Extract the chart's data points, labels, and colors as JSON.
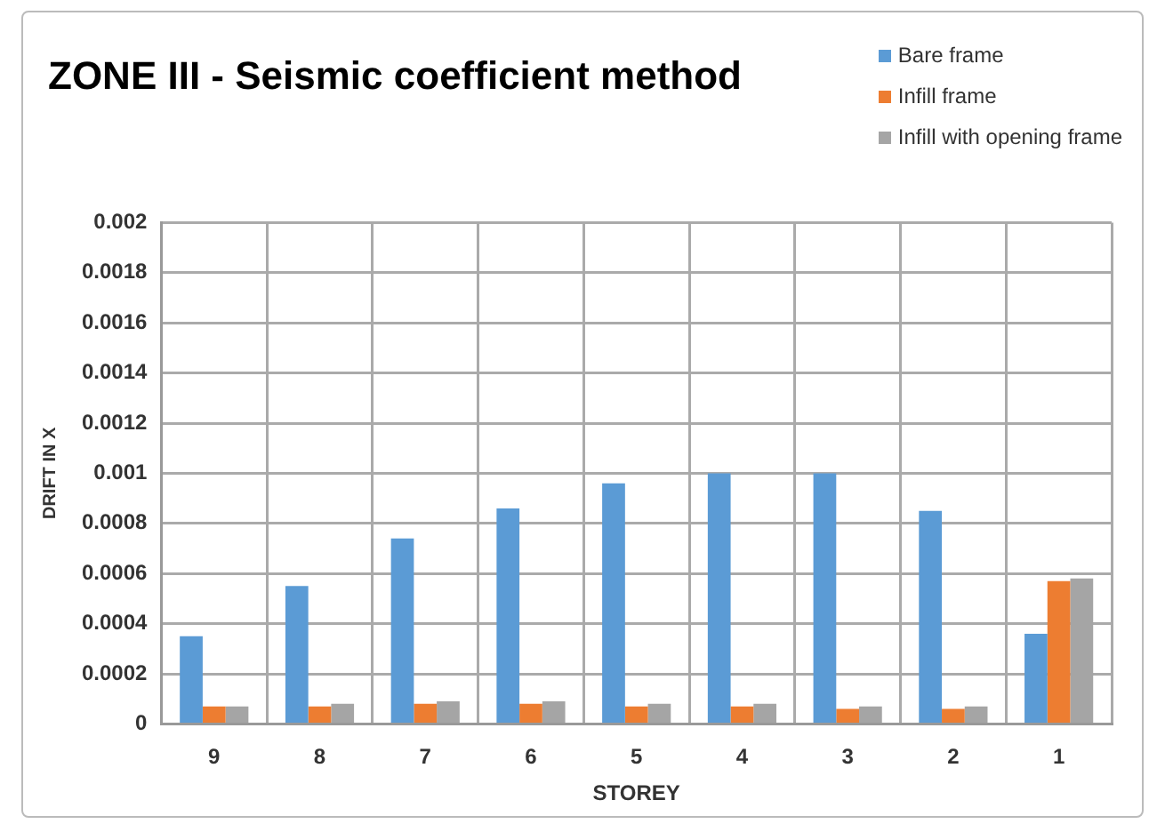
{
  "chart_data": {
    "type": "bar",
    "title": "ZONE III - Seismic coefficient method",
    "xlabel": "STOREY",
    "ylabel": "DRIFT IN X",
    "categories": [
      "9",
      "8",
      "7",
      "6",
      "5",
      "4",
      "3",
      "2",
      "1"
    ],
    "series": [
      {
        "name": "Bare frame",
        "color": "#5b9bd5",
        "values": [
          0.00035,
          0.00055,
          0.00074,
          0.00086,
          0.00096,
          0.001,
          0.001,
          0.00085,
          0.00036
        ]
      },
      {
        "name": "Infill frame",
        "color": "#ed7d31",
        "values": [
          7e-05,
          7e-05,
          8e-05,
          8e-05,
          7e-05,
          7e-05,
          6e-05,
          6e-05,
          0.00057
        ]
      },
      {
        "name": "Infill with opening frame",
        "color": "#a5a5a5",
        "values": [
          7e-05,
          8e-05,
          9e-05,
          9e-05,
          8e-05,
          8e-05,
          7e-05,
          7e-05,
          0.00058
        ]
      }
    ],
    "ylim": [
      0,
      0.002
    ],
    "yticks": [
      0,
      0.0002,
      0.0004,
      0.0006,
      0.0008,
      0.001,
      0.0012,
      0.0014,
      0.0016,
      0.0018,
      0.002
    ],
    "grid": true,
    "legend": "top right"
  }
}
